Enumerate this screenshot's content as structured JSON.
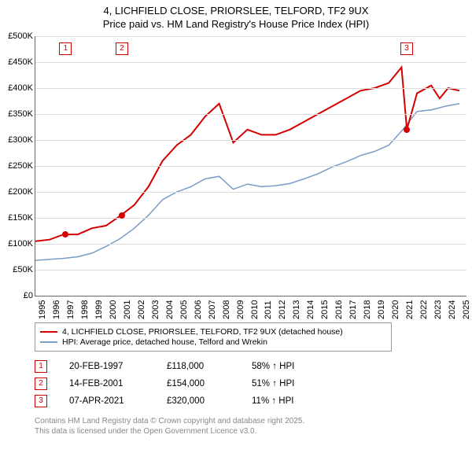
{
  "title_line1": "4, LICHFIELD CLOSE, PRIORSLEE, TELFORD, TF2 9UX",
  "title_line2": "Price paid vs. HM Land Registry's House Price Index (HPI)",
  "chart": {
    "type": "line",
    "background_color": "#ffffff",
    "grid_color": "#dddddd",
    "axis_color": "#666666",
    "ylim": [
      0,
      500000
    ],
    "ytick_step": 50000,
    "yticks": [
      "£0",
      "£50K",
      "£100K",
      "£150K",
      "£200K",
      "£250K",
      "£300K",
      "£350K",
      "£400K",
      "£450K",
      "£500K"
    ],
    "xlim": [
      1995,
      2025.5
    ],
    "xticks": [
      1995,
      1996,
      1997,
      1998,
      1999,
      2000,
      2001,
      2002,
      2003,
      2004,
      2005,
      2006,
      2007,
      2008,
      2009,
      2010,
      2011,
      2012,
      2013,
      2014,
      2015,
      2016,
      2017,
      2018,
      2019,
      2020,
      2021,
      2022,
      2023,
      2024,
      2025
    ],
    "series_property": {
      "color": "#d40000",
      "width": 2,
      "points": [
        [
          1995,
          105000
        ],
        [
          1996,
          108000
        ],
        [
          1997,
          118000
        ],
        [
          1998,
          118000
        ],
        [
          1999,
          130000
        ],
        [
          2000,
          135000
        ],
        [
          2001,
          154000
        ],
        [
          2002,
          175000
        ],
        [
          2003,
          210000
        ],
        [
          2004,
          260000
        ],
        [
          2005,
          290000
        ],
        [
          2006,
          310000
        ],
        [
          2007,
          345000
        ],
        [
          2008,
          370000
        ],
        [
          2009,
          295000
        ],
        [
          2010,
          320000
        ],
        [
          2011,
          310000
        ],
        [
          2012,
          310000
        ],
        [
          2013,
          320000
        ],
        [
          2014,
          335000
        ],
        [
          2015,
          350000
        ],
        [
          2016,
          365000
        ],
        [
          2017,
          380000
        ],
        [
          2018,
          395000
        ],
        [
          2019,
          400000
        ],
        [
          2020,
          410000
        ],
        [
          2020.9,
          440000
        ],
        [
          2021.28,
          320000
        ],
        [
          2022,
          390000
        ],
        [
          2023,
          405000
        ],
        [
          2023.6,
          380000
        ],
        [
          2024.2,
          400000
        ],
        [
          2025,
          395000
        ]
      ]
    },
    "series_hpi": {
      "color": "#7a9cc6",
      "width": 1.5,
      "points": [
        [
          1995,
          68000
        ],
        [
          1996,
          70000
        ],
        [
          1997,
          72000
        ],
        [
          1998,
          75000
        ],
        [
          1999,
          82000
        ],
        [
          2000,
          95000
        ],
        [
          2001,
          110000
        ],
        [
          2002,
          130000
        ],
        [
          2003,
          155000
        ],
        [
          2004,
          185000
        ],
        [
          2005,
          200000
        ],
        [
          2006,
          210000
        ],
        [
          2007,
          225000
        ],
        [
          2008,
          230000
        ],
        [
          2009,
          205000
        ],
        [
          2010,
          215000
        ],
        [
          2011,
          210000
        ],
        [
          2012,
          212000
        ],
        [
          2013,
          216000
        ],
        [
          2014,
          225000
        ],
        [
          2015,
          235000
        ],
        [
          2016,
          248000
        ],
        [
          2017,
          258000
        ],
        [
          2018,
          270000
        ],
        [
          2019,
          278000
        ],
        [
          2020,
          290000
        ],
        [
          2021,
          320000
        ],
        [
          2022,
          355000
        ],
        [
          2023,
          358000
        ],
        [
          2024,
          365000
        ],
        [
          2025,
          370000
        ]
      ]
    },
    "sale_markers": [
      {
        "n": "1",
        "x": 1997.14,
        "y": 118000
      },
      {
        "n": "2",
        "x": 2001.12,
        "y": 154000
      },
      {
        "n": "3",
        "x": 2021.27,
        "y": 320000
      }
    ]
  },
  "legend": {
    "item1": {
      "color": "#d40000",
      "label": "4, LICHFIELD CLOSE, PRIORSLEE, TELFORD, TF2 9UX (detached house)"
    },
    "item2": {
      "color": "#7a9cc6",
      "label": "HPI: Average price, detached house, Telford and Wrekin"
    }
  },
  "sales": [
    {
      "n": "1",
      "date": "20-FEB-1997",
      "price": "£118,000",
      "hpi": "58% ↑ HPI"
    },
    {
      "n": "2",
      "date": "14-FEB-2001",
      "price": "£154,000",
      "hpi": "51% ↑ HPI"
    },
    {
      "n": "3",
      "date": "07-APR-2021",
      "price": "£320,000",
      "hpi": "11% ↑ HPI"
    }
  ],
  "footer_line1": "Contains HM Land Registry data © Crown copyright and database right 2025.",
  "footer_line2": "This data is licensed under the Open Government Licence v3.0."
}
